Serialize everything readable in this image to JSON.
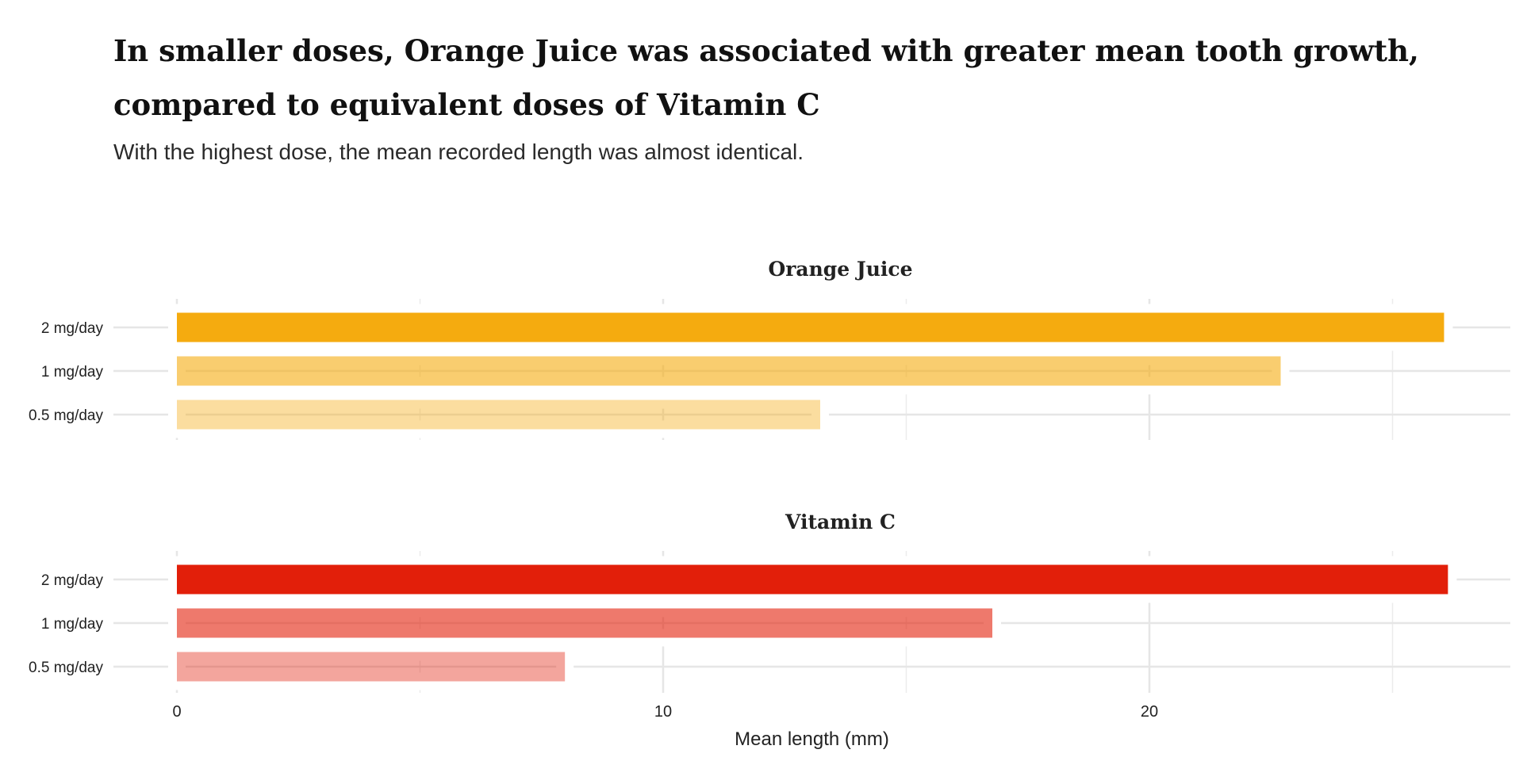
{
  "title": "In smaller doses, Orange Juice was associated with greater mean tooth growth, compared to equivalent doses of Vitamin C",
  "subtitle": "With the highest dose, the mean recorded length was almost identical.",
  "chart_data": {
    "type": "bar",
    "orientation": "horizontal",
    "xlabel": "Mean length (mm)",
    "ylabel": "",
    "xlim": [
      0,
      27.5
    ],
    "x_ticks": [
      0,
      10,
      20
    ],
    "grid": true,
    "categories": [
      "2 mg/day",
      "1 mg/day",
      "0.5 mg/day"
    ],
    "panels": [
      {
        "name": "Orange Juice",
        "color": "#F5AB0F",
        "values": [
          26.06,
          22.7,
          13.23
        ],
        "opacities": [
          1,
          0.6,
          0.4
        ]
      },
      {
        "name": "Vitamin C",
        "color": "#E21F0A",
        "values": [
          26.14,
          16.77,
          7.98
        ],
        "opacities": [
          1,
          0.6,
          0.4
        ]
      }
    ]
  }
}
